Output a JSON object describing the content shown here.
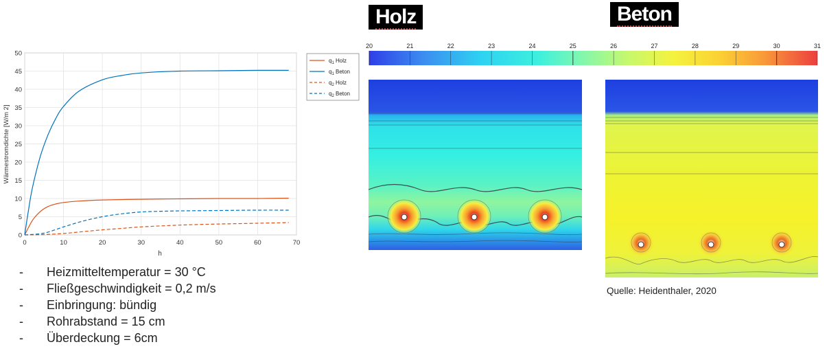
{
  "chart_data": {
    "type": "line",
    "xlabel": "h",
    "ylabel": "Wärmestromdichte [W/m 2]",
    "xlim": [
      0,
      70
    ],
    "ylim": [
      0,
      50
    ],
    "xticks": [
      0,
      10,
      20,
      30,
      40,
      50,
      60,
      70
    ],
    "yticks": [
      0,
      5,
      10,
      15,
      20,
      25,
      30,
      35,
      40,
      45,
      50
    ],
    "grid": true,
    "legend_position": "top-right-outside",
    "series": [
      {
        "name": "q1 Holz",
        "label_main": "q",
        "label_sub": "1",
        "label_tail": "Holz",
        "color": "#d95319",
        "style": "solid",
        "x": [
          0,
          2,
          4,
          6,
          8,
          10,
          14,
          20,
          30,
          40,
          50,
          60,
          68
        ],
        "y": [
          0,
          4.0,
          6.4,
          7.8,
          8.5,
          8.9,
          9.3,
          9.6,
          9.8,
          9.9,
          10.0,
          10.0,
          10.1
        ]
      },
      {
        "name": "q1 Beton",
        "label_main": "q",
        "label_sub": "1",
        "label_tail": "Beton",
        "color": "#0072bd",
        "style": "solid",
        "x": [
          0,
          1,
          2,
          4,
          6,
          8,
          10,
          14,
          20,
          25,
          30,
          40,
          50,
          60,
          68
        ],
        "y": [
          0,
          7,
          13,
          21.5,
          27.5,
          32,
          35.3,
          39.5,
          42.6,
          43.8,
          44.5,
          45.0,
          45.1,
          45.2,
          45.2
        ]
      },
      {
        "name": "q2 Holz",
        "label_main": "q",
        "label_sub": "2",
        "label_tail": "Holz",
        "color": "#d95319",
        "style": "dashed",
        "x": [
          0,
          5,
          10,
          15,
          20,
          25,
          30,
          40,
          50,
          60,
          68
        ],
        "y": [
          0,
          0.1,
          0.4,
          0.9,
          1.4,
          1.8,
          2.2,
          2.7,
          3.0,
          3.2,
          3.4
        ]
      },
      {
        "name": "q2 Beton",
        "label_main": "q",
        "label_sub": "2",
        "label_tail": "Beton",
        "color": "#0072bd",
        "style": "dashed",
        "x": [
          0,
          5,
          10,
          15,
          20,
          25,
          30,
          35,
          40,
          50,
          60,
          68
        ],
        "y": [
          0,
          0.5,
          2.2,
          3.8,
          5.0,
          5.8,
          6.3,
          6.5,
          6.6,
          6.7,
          6.8,
          6.8
        ]
      }
    ]
  },
  "heatmap": {
    "titles": {
      "holz": "Holz",
      "beton": "Beton"
    },
    "colorbar_ticks": [
      20,
      21,
      22,
      23,
      24,
      25,
      26,
      27,
      28,
      29,
      30,
      31
    ]
  },
  "bullets": [
    "Heizmitteltemperatur = 30 °C",
    "Fließgeschwindigkeit = 0,2 m/s",
    "Einbringung: bündig",
    "Rohrabstand = 15 cm",
    "Überdeckung = 6cm"
  ],
  "bullet_marker": "-",
  "source": "Quelle: Heidenthaler, 2020"
}
